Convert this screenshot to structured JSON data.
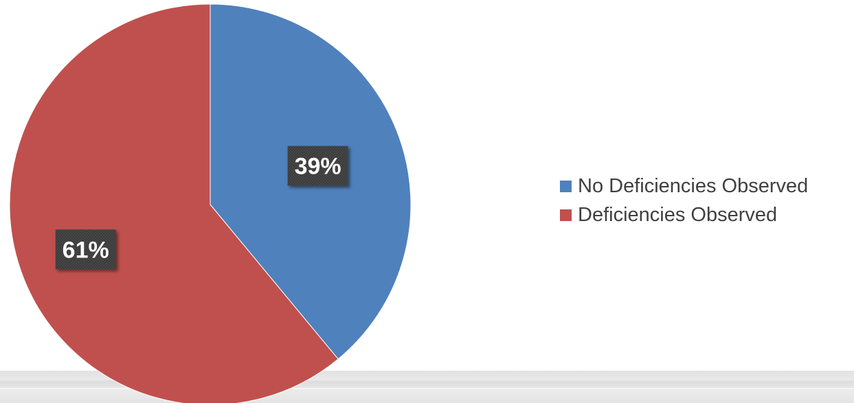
{
  "chart_data": {
    "type": "pie",
    "title": "",
    "slices": [
      {
        "label": "No Deficiencies Observed",
        "value": 39,
        "display": "39%",
        "color": "#4f81bd"
      },
      {
        "label": "Deficiencies Observed",
        "value": 61,
        "display": "61%",
        "color": "#c0504d"
      }
    ],
    "start_angle": "12 o'clock",
    "direction": "clockwise",
    "legend_placement": "right",
    "data_label_style": "bold white text on dark textured box"
  }
}
